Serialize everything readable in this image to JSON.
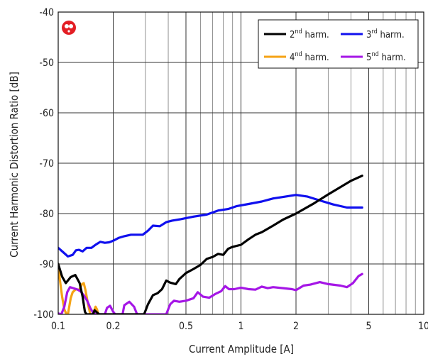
{
  "chart_data": {
    "type": "line",
    "title": "",
    "xlabel": "Current Amplitude [A]",
    "ylabel": "Current Harmonic Distortion Ratio [dB]",
    "x_scale": "log",
    "xlim": [
      0.1,
      10
    ],
    "ylim": [
      -100,
      -40
    ],
    "x_ticks": [
      {
        "v": 0.1,
        "label": "0.1"
      },
      {
        "v": 0.2,
        "label": "0.2"
      },
      {
        "v": 0.5,
        "label": "0.5"
      },
      {
        "v": 1,
        "label": "1"
      },
      {
        "v": 2,
        "label": "2"
      },
      {
        "v": 5,
        "label": "5"
      },
      {
        "v": 10,
        "label": "10"
      }
    ],
    "y_ticks": [
      {
        "v": -40,
        "label": "-40"
      },
      {
        "v": -50,
        "label": "-50"
      },
      {
        "v": -60,
        "label": "-60"
      },
      {
        "v": -70,
        "label": "-70"
      },
      {
        "v": -80,
        "label": "-80"
      },
      {
        "v": -90,
        "label": "-90"
      },
      {
        "v": -100,
        "label": "-100"
      }
    ],
    "grid": true,
    "legend_position": "top-right",
    "series": [
      {
        "name": "2nd harm.",
        "color": "#000000",
        "points": [
          [
            0.1,
            -90
          ],
          [
            0.105,
            -92.5
          ],
          [
            0.11,
            -93.8
          ],
          [
            0.117,
            -92.6
          ],
          [
            0.124,
            -92.2
          ],
          [
            0.131,
            -93.8
          ],
          [
            0.136,
            -96.5
          ],
          [
            0.14,
            -99.5
          ],
          [
            0.143,
            -100
          ],
          [
            0.155,
            -100
          ],
          [
            0.158,
            -99.2
          ],
          [
            0.165,
            -99.8
          ],
          [
            0.168,
            -100
          ],
          [
            0.295,
            -100
          ],
          [
            0.31,
            -98
          ],
          [
            0.33,
            -96.2
          ],
          [
            0.35,
            -95.8
          ],
          [
            0.37,
            -95
          ],
          [
            0.39,
            -93.3
          ],
          [
            0.41,
            -93.7
          ],
          [
            0.44,
            -94
          ],
          [
            0.46,
            -93
          ],
          [
            0.5,
            -91.8
          ],
          [
            0.55,
            -91
          ],
          [
            0.6,
            -90.2
          ],
          [
            0.65,
            -89
          ],
          [
            0.7,
            -88.6
          ],
          [
            0.75,
            -88
          ],
          [
            0.8,
            -88.2
          ],
          [
            0.85,
            -87
          ],
          [
            0.9,
            -86.6
          ],
          [
            1.0,
            -86.2
          ],
          [
            1.1,
            -85.1
          ],
          [
            1.2,
            -84.2
          ],
          [
            1.3,
            -83.7
          ],
          [
            1.5,
            -82.4
          ],
          [
            1.7,
            -81.2
          ],
          [
            2.0,
            -80
          ],
          [
            2.5,
            -78
          ],
          [
            3.0,
            -76.2
          ],
          [
            4.0,
            -73.5
          ],
          [
            4.6,
            -72.5
          ]
        ]
      },
      {
        "name": "3rd harm.",
        "color": "#1010ee",
        "points": [
          [
            0.1,
            -86.8
          ],
          [
            0.106,
            -87.6
          ],
          [
            0.113,
            -88.5
          ],
          [
            0.12,
            -88.2
          ],
          [
            0.125,
            -87.3
          ],
          [
            0.13,
            -87.2
          ],
          [
            0.136,
            -87.5
          ],
          [
            0.143,
            -86.8
          ],
          [
            0.152,
            -86.8
          ],
          [
            0.16,
            -86.2
          ],
          [
            0.17,
            -85.6
          ],
          [
            0.18,
            -85.8
          ],
          [
            0.19,
            -85.7
          ],
          [
            0.2,
            -85.4
          ],
          [
            0.215,
            -84.8
          ],
          [
            0.23,
            -84.5
          ],
          [
            0.25,
            -84.2
          ],
          [
            0.27,
            -84.2
          ],
          [
            0.29,
            -84.2
          ],
          [
            0.31,
            -83.4
          ],
          [
            0.33,
            -82.4
          ],
          [
            0.36,
            -82.5
          ],
          [
            0.39,
            -81.7
          ],
          [
            0.42,
            -81.4
          ],
          [
            0.47,
            -81.1
          ],
          [
            0.55,
            -80.6
          ],
          [
            0.65,
            -80.2
          ],
          [
            0.75,
            -79.4
          ],
          [
            0.85,
            -79.1
          ],
          [
            0.95,
            -78.5
          ],
          [
            1.1,
            -78.1
          ],
          [
            1.3,
            -77.6
          ],
          [
            1.5,
            -77
          ],
          [
            1.7,
            -76.7
          ],
          [
            2.0,
            -76.3
          ],
          [
            2.3,
            -76.6
          ],
          [
            2.7,
            -77.4
          ],
          [
            3.2,
            -78.2
          ],
          [
            3.8,
            -78.8
          ],
          [
            4.6,
            -78.8
          ]
        ]
      },
      {
        "name": "4nd harm.",
        "color": "#f5a315",
        "points": [
          [
            0.1,
            -90
          ],
          [
            0.102,
            -93
          ],
          [
            0.105,
            -96.5
          ],
          [
            0.108,
            -99
          ],
          [
            0.111,
            -100
          ],
          [
            0.113,
            -100
          ],
          [
            0.117,
            -96.8
          ],
          [
            0.12,
            -95.6
          ],
          [
            0.125,
            -95
          ],
          [
            0.13,
            -95.2
          ],
          [
            0.135,
            -94
          ],
          [
            0.138,
            -93.8
          ],
          [
            0.141,
            -95.2
          ],
          [
            0.146,
            -98.2
          ],
          [
            0.15,
            -100
          ],
          [
            0.155,
            -100
          ],
          [
            0.16,
            -98.5
          ],
          [
            0.163,
            -99
          ],
          [
            0.166,
            -100
          ]
        ]
      },
      {
        "name": "5nd harm.",
        "color": "#a516e6",
        "points": [
          [
            0.1,
            -99.8
          ],
          [
            0.104,
            -100
          ],
          [
            0.108,
            -98.5
          ],
          [
            0.112,
            -95.6
          ],
          [
            0.116,
            -94.6
          ],
          [
            0.121,
            -94.8
          ],
          [
            0.128,
            -95.1
          ],
          [
            0.133,
            -95.5
          ],
          [
            0.138,
            -96.2
          ],
          [
            0.144,
            -97.3
          ],
          [
            0.15,
            -98.8
          ],
          [
            0.155,
            -99.6
          ],
          [
            0.16,
            -100
          ],
          [
            0.18,
            -100
          ],
          [
            0.185,
            -98.7
          ],
          [
            0.192,
            -98.3
          ],
          [
            0.2,
            -99.5
          ],
          [
            0.205,
            -100
          ],
          [
            0.225,
            -100
          ],
          [
            0.23,
            -98.2
          ],
          [
            0.245,
            -97.5
          ],
          [
            0.26,
            -98.5
          ],
          [
            0.27,
            -100
          ],
          [
            0.39,
            -100
          ],
          [
            0.41,
            -98
          ],
          [
            0.43,
            -97.3
          ],
          [
            0.46,
            -97.5
          ],
          [
            0.5,
            -97.3
          ],
          [
            0.55,
            -96.8
          ],
          [
            0.58,
            -95.6
          ],
          [
            0.62,
            -96.5
          ],
          [
            0.67,
            -96.7
          ],
          [
            0.72,
            -96
          ],
          [
            0.78,
            -95.4
          ],
          [
            0.82,
            -94.4
          ],
          [
            0.86,
            -95
          ],
          [
            0.92,
            -95
          ],
          [
            1.0,
            -94.7
          ],
          [
            1.1,
            -95
          ],
          [
            1.2,
            -95.1
          ],
          [
            1.3,
            -94.5
          ],
          [
            1.4,
            -94.8
          ],
          [
            1.5,
            -94.6
          ],
          [
            1.7,
            -94.8
          ],
          [
            1.9,
            -95
          ],
          [
            2.0,
            -95.2
          ],
          [
            2.2,
            -94.3
          ],
          [
            2.4,
            -94.1
          ],
          [
            2.7,
            -93.6
          ],
          [
            3.0,
            -94
          ],
          [
            3.5,
            -94.3
          ],
          [
            3.8,
            -94.6
          ],
          [
            4.1,
            -93.8
          ],
          [
            4.4,
            -92.4
          ],
          [
            4.6,
            -92
          ]
        ]
      }
    ]
  },
  "badge": {
    "icon": "red-circle-badge-icon",
    "color": "#e31e24"
  }
}
